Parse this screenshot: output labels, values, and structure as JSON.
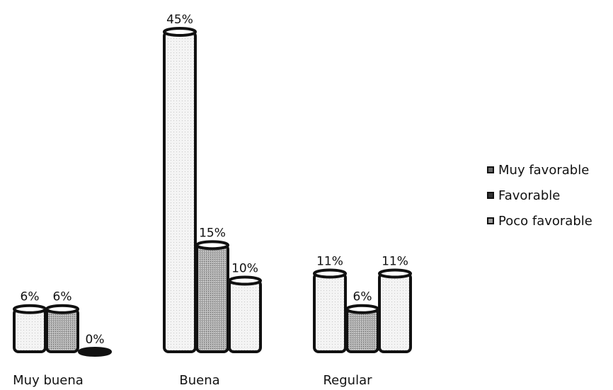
{
  "chart_data": {
    "type": "bar",
    "categories": [
      "Muy buena",
      "Buena",
      "Regular"
    ],
    "series": [
      {
        "name": "Muy favorable",
        "values": [
          6,
          45,
          11
        ]
      },
      {
        "name": "Favorable",
        "values": [
          6,
          15,
          6
        ]
      },
      {
        "name": "Poco favorable",
        "values": [
          0,
          10,
          11
        ]
      }
    ],
    "data_labels": [
      [
        "6%",
        "45%",
        "11%"
      ],
      [
        "6%",
        "15%",
        "6%"
      ],
      [
        "0%",
        "10%",
        "11%"
      ]
    ],
    "ylim": [
      0,
      45
    ],
    "grid": false,
    "legend_position": "right",
    "title": "",
    "xlabel": "",
    "ylabel": ""
  },
  "colors": {
    "outline": "#111111",
    "fill_light": "#f2f2f2",
    "fill_dark": "#9a9a9a"
  }
}
